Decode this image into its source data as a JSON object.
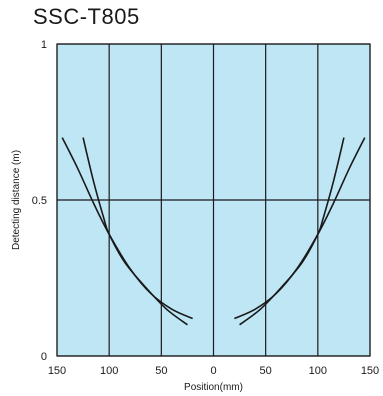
{
  "chart_data": {
    "type": "line",
    "title": "SSC-T805",
    "xlabel": "Position(mm)",
    "ylabel": "Detecting distance (m)",
    "xlim": [
      -150,
      150
    ],
    "ylim": [
      0,
      1
    ],
    "x_tick_labels": [
      "150",
      "100",
      "50",
      "0",
      "50",
      "100",
      "150"
    ],
    "x_tick_values": [
      -150,
      -100,
      -50,
      0,
      50,
      100,
      150
    ],
    "y_tick_labels": [
      "0",
      "0.5",
      "1"
    ],
    "y_tick_values": [
      0,
      0.5,
      1
    ],
    "grid": true,
    "background_color": "#bfe6f5",
    "line_color": "#1a1a1a",
    "series": [
      {
        "points": [
          [
            -145,
            0.7
          ],
          [
            -130,
            0.6
          ],
          [
            -115,
            0.49
          ],
          [
            -100,
            0.39
          ],
          [
            -80,
            0.28
          ],
          [
            -60,
            0.2
          ],
          [
            -40,
            0.15
          ],
          [
            -20,
            0.12
          ]
        ]
      },
      {
        "points": [
          [
            -125,
            0.7
          ],
          [
            -115,
            0.56
          ],
          [
            -105,
            0.44
          ],
          [
            -100,
            0.39
          ],
          [
            -85,
            0.3
          ],
          [
            -65,
            0.22
          ],
          [
            -45,
            0.15
          ],
          [
            -25,
            0.1
          ]
        ]
      },
      {
        "points": [
          [
            20,
            0.12
          ],
          [
            40,
            0.15
          ],
          [
            60,
            0.2
          ],
          [
            80,
            0.28
          ],
          [
            100,
            0.39
          ],
          [
            115,
            0.49
          ],
          [
            130,
            0.6
          ],
          [
            145,
            0.7
          ]
        ]
      },
      {
        "points": [
          [
            25,
            0.1
          ],
          [
            45,
            0.15
          ],
          [
            65,
            0.22
          ],
          [
            85,
            0.3
          ],
          [
            100,
            0.39
          ],
          [
            105,
            0.44
          ],
          [
            115,
            0.56
          ],
          [
            125,
            0.7
          ]
        ]
      }
    ]
  }
}
